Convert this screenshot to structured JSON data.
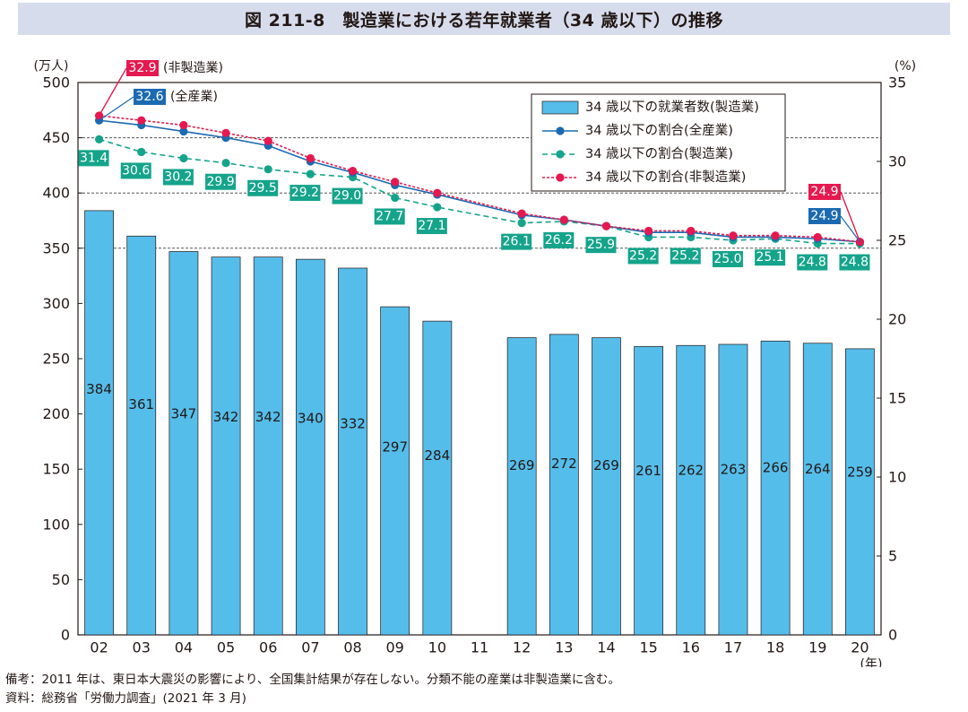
{
  "title": "図 211-8　製造業における若年就業者（34 歳以下）の推移",
  "notes": [
    "備考：2011 年は、東日本大震災の影響により、全国集計結果が存在しない。分類不能の産業は非製造業に含む。",
    "資料：総務省「労働力調査」(2021 年 3 月)"
  ],
  "colors": {
    "bar": "#55bdea",
    "all_industries": "#1b6ab1",
    "manufacturing": "#15a48b",
    "non_manufacturing": "#e5194f",
    "title_bg": "#d7dcec"
  },
  "chart_data": {
    "type": "bar",
    "categories": [
      "02",
      "03",
      "04",
      "05",
      "06",
      "07",
      "08",
      "09",
      "10",
      "11",
      "12",
      "13",
      "14",
      "15",
      "16",
      "17",
      "18",
      "19",
      "20"
    ],
    "xlabel": "(年)",
    "ylabel_left": "(万人)",
    "ylabel_right": "(%)",
    "ylim_left": [
      0,
      500
    ],
    "ylim_right": [
      0,
      35
    ],
    "yticks_left": [
      "0",
      "50",
      "100",
      "150",
      "200",
      "250",
      "300",
      "350",
      "400",
      "450",
      "500"
    ],
    "yticks_right": [
      "0",
      "5",
      "10",
      "15",
      "20",
      "25",
      "30",
      "35"
    ],
    "grid": "dashed at 350, 400, 450",
    "legend": "top-right",
    "series": [
      {
        "name": "34 歳以下の就業者数(製造業)",
        "axis": "left",
        "type": "bar",
        "values": [
          384,
          361,
          347,
          342,
          342,
          340,
          332,
          297,
          284,
          null,
          269,
          272,
          269,
          261,
          262,
          263,
          266,
          264,
          259
        ],
        "labels": [
          "384",
          "361",
          "347",
          "342",
          "342",
          "340",
          "332",
          "297",
          "284",
          "",
          "269",
          "272",
          "269",
          "261",
          "262",
          "263",
          "266",
          "264",
          "259"
        ]
      },
      {
        "name": "34 歳以下の割合(全産業)",
        "axis": "right",
        "type": "line",
        "values": [
          32.6,
          32.3,
          31.9,
          31.5,
          31.0,
          30.0,
          29.3,
          28.5,
          27.9,
          null,
          26.6,
          26.3,
          25.9,
          25.5,
          25.5,
          25.2,
          25.2,
          25.1,
          24.9
        ],
        "labels": [
          "32.6",
          "",
          "",
          "",
          "",
          "",
          "",
          "",
          "",
          "",
          "",
          "",
          "",
          "",
          "",
          "",
          "",
          "",
          "24.9"
        ]
      },
      {
        "name": "34 歳以下の割合(製造業)",
        "axis": "right",
        "type": "line",
        "values": [
          31.4,
          30.6,
          30.2,
          29.9,
          29.5,
          29.2,
          29.0,
          27.7,
          27.1,
          null,
          26.1,
          26.2,
          25.9,
          25.2,
          25.2,
          25.0,
          25.1,
          24.8,
          24.8
        ],
        "labels": [
          "31.4",
          "30.6",
          "30.2",
          "29.9",
          "29.5",
          "29.2",
          "29.0",
          "27.7",
          "27.1",
          "",
          "26.1",
          "26.2",
          "25.9",
          "25.2",
          "25.2",
          "25.0",
          "25.1",
          "24.8",
          "24.8"
        ]
      },
      {
        "name": "34 歳以下の割合(非製造業)",
        "axis": "right",
        "type": "line",
        "values": [
          32.9,
          32.6,
          32.3,
          31.8,
          31.3,
          30.2,
          29.4,
          28.7,
          28.0,
          null,
          26.7,
          26.3,
          25.9,
          25.6,
          25.6,
          25.3,
          25.3,
          25.2,
          24.9
        ],
        "labels": [
          "32.9",
          "",
          "",
          "",
          "",
          "",
          "",
          "",
          "",
          "",
          "",
          "",
          "",
          "",
          "",
          "",
          "",
          "",
          "24.9"
        ]
      }
    ],
    "callouts": [
      {
        "series": 3,
        "index": 0,
        "value": "32.9",
        "text": "(非製造業)"
      },
      {
        "series": 1,
        "index": 0,
        "value": "32.6",
        "text": "(全産業)"
      },
      {
        "series": 3,
        "index": 18,
        "value": "24.9",
        "text": ""
      },
      {
        "series": 1,
        "index": 18,
        "value": "24.9",
        "text": ""
      }
    ]
  }
}
